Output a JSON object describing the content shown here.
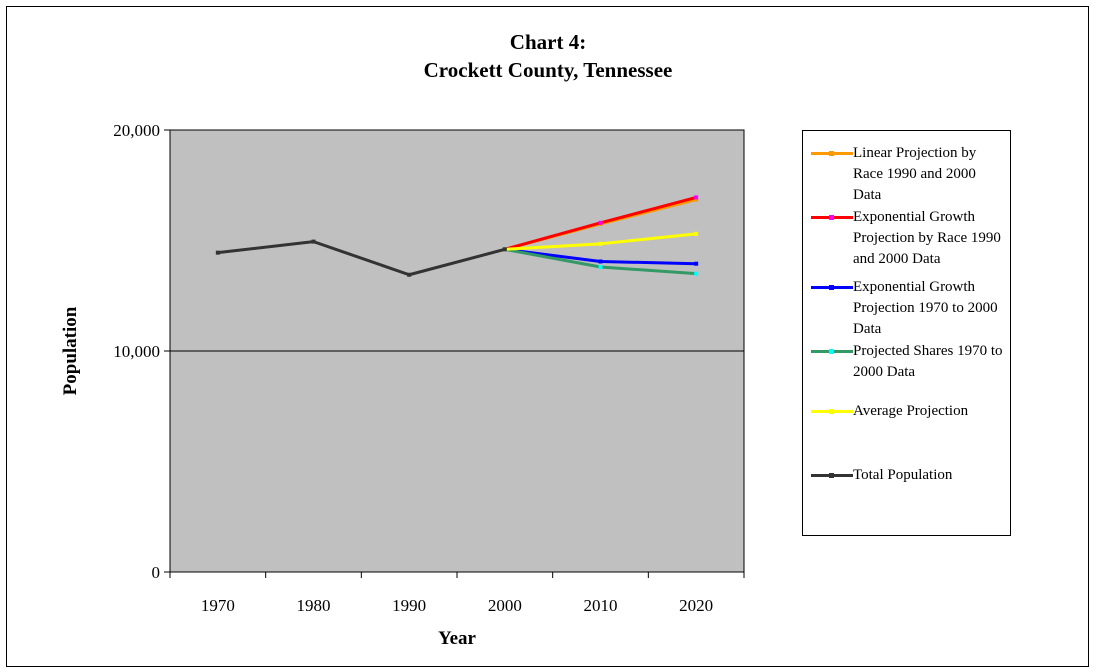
{
  "chart_data": {
    "type": "line",
    "title": "Chart 4:",
    "subtitle": "Crockett County, Tennessee",
    "xlabel": "Year",
    "ylabel": "Population",
    "x": [
      1970,
      1980,
      1990,
      2000,
      2010,
      2020
    ],
    "xlim": [
      1965,
      2025
    ],
    "ylim": [
      0,
      20000
    ],
    "yticks": [
      0,
      10000,
      20000
    ],
    "ytick_labels": [
      "0",
      "10,000",
      "20,000"
    ],
    "xtick_labels": [
      "1970",
      "1980",
      "1990",
      "2000",
      "2010",
      "2020"
    ],
    "grid": "horizontal major gridlines",
    "plot_background": "#c0c0c0",
    "legend_position": "right",
    "series": [
      {
        "name": "Linear Projection by Race 1990 and 2000 Data",
        "color": "#ff9900",
        "marker_color": "#ff9900",
        "points": [
          [
            2000,
            14600
          ],
          [
            2010,
            15750
          ],
          [
            2020,
            16850
          ]
        ]
      },
      {
        "name": "Exponential Growth Projection by Race 1990 and 2000 Data",
        "color": "#ff0000",
        "marker_color": "#ff00ff",
        "points": [
          [
            2000,
            14600
          ],
          [
            2010,
            15800
          ],
          [
            2020,
            16950
          ]
        ]
      },
      {
        "name": "Exponential Growth Projection 1970 to 2000 Data",
        "color": "#0000ff",
        "marker_color": "#0000ff",
        "points": [
          [
            2000,
            14600
          ],
          [
            2010,
            14050
          ],
          [
            2020,
            13950
          ]
        ]
      },
      {
        "name": "Projected Shares 1970 to 2000 Data",
        "color": "#339966",
        "marker_color": "#00ffff",
        "points": [
          [
            2000,
            14600
          ],
          [
            2010,
            13800
          ],
          [
            2020,
            13500
          ]
        ]
      },
      {
        "name": "Average Projection",
        "color": "#ffff00",
        "marker_color": "#ffff00",
        "points": [
          [
            2000,
            14600
          ],
          [
            2010,
            14850
          ],
          [
            2020,
            15300
          ]
        ]
      },
      {
        "name": "Total Population",
        "color": "#333333",
        "marker_color": "#333333",
        "points": [
          [
            1970,
            14450
          ],
          [
            1980,
            14950
          ],
          [
            1990,
            13450
          ],
          [
            2000,
            14600
          ]
        ]
      }
    ]
  }
}
